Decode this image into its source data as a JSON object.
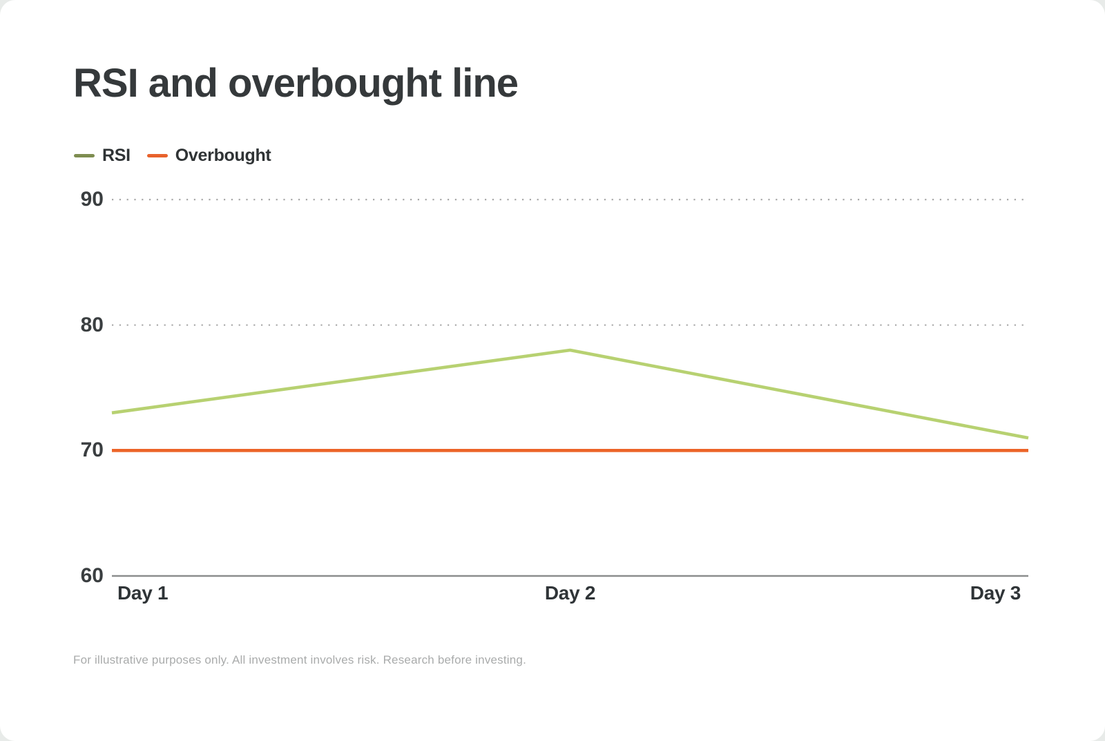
{
  "chart_data": {
    "type": "line",
    "title": "RSI and overbought line",
    "categories": [
      "Day 1",
      "Day 2",
      "Day 3"
    ],
    "series": [
      {
        "name": "RSI",
        "values": [
          73,
          78,
          71
        ],
        "line_color": "#b7d171",
        "legend_color": "#7e8d50"
      },
      {
        "name": "Overbought",
        "values": [
          70,
          70,
          70
        ],
        "line_color": "#ec6428",
        "legend_color": "#e8622c"
      }
    ],
    "yticks": [
      90,
      80,
      70,
      60
    ],
    "ylim": [
      60,
      90
    ],
    "grid": "horizontal-dotted",
    "legend_position": "top-left",
    "xlabel": "",
    "ylabel": ""
  },
  "footer": {
    "disclaimer": "For illustrative purposes only. All investment involves risk. Research before investing."
  },
  "colors": {
    "background": "#e8ebe9",
    "card": "#ffffff",
    "title_text": "#35393b",
    "tick_text": "#3a3e40",
    "grid_dotted": "#a8a8a8",
    "axis_line": "#8b8d8d",
    "footer_text": "#a9abab"
  }
}
